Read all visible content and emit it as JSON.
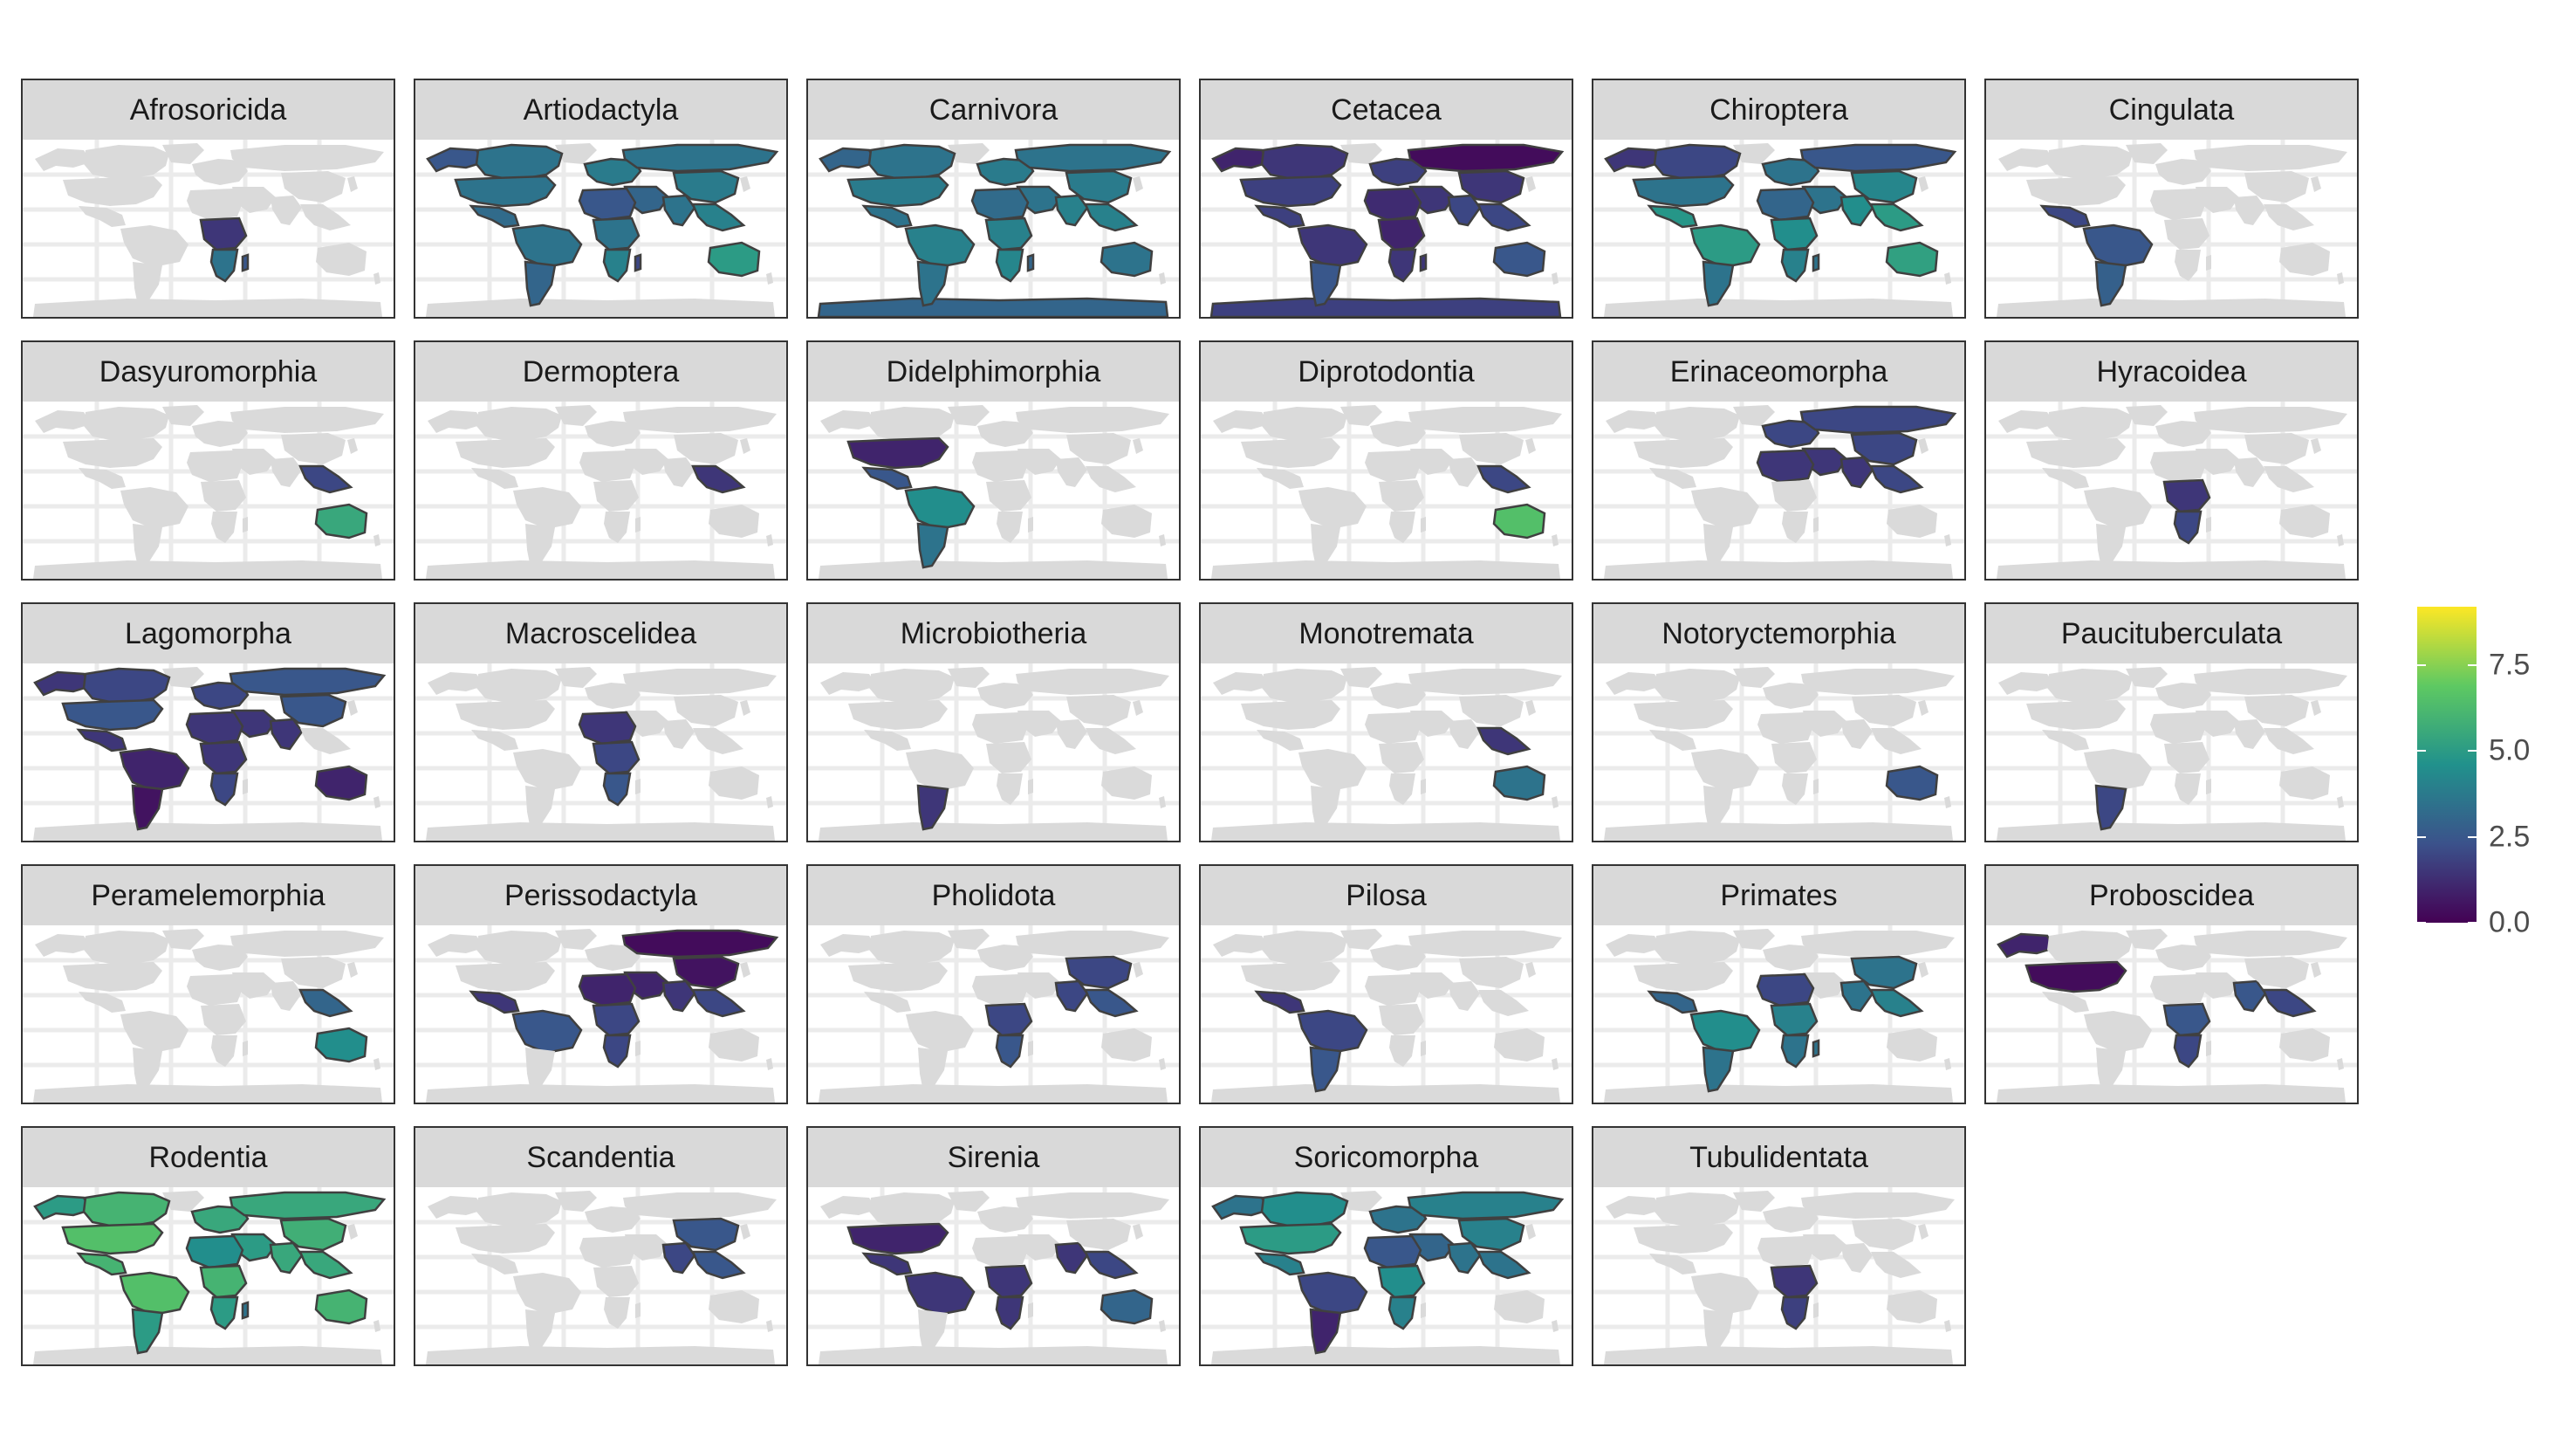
{
  "facets": [
    {
      "order": "Afrosoricida",
      "regions": {
        "c_africa": 1.5,
        "madagascar": 2.5,
        "s_africa": 3.5
      }
    },
    {
      "order": "Artiodactyla",
      "regions": {
        "canada": 3.5,
        "alaska": 2.5,
        "usa": 3.5,
        "mexico": 3.2,
        "n_south_america": 3.5,
        "s_south_america": 3.0,
        "europe": 3.8,
        "russia": 3.5,
        "middle_east": 3.0,
        "n_africa": 2.5,
        "c_africa": 3.5,
        "s_africa": 4.0,
        "india": 3.5,
        "china": 3.8,
        "se_asia": 4.0,
        "australia": 5.0,
        "madagascar": 2.0,
        "antarctica": null
      }
    },
    {
      "order": "Carnivora",
      "regions": {
        "canada": 3.5,
        "alaska": 3.0,
        "usa": 3.8,
        "mexico": 3.5,
        "n_south_america": 4.0,
        "s_south_america": 3.5,
        "europe": 3.8,
        "russia": 3.5,
        "middle_east": 3.5,
        "n_africa": 3.2,
        "c_africa": 4.0,
        "s_africa": 4.2,
        "india": 4.0,
        "china": 3.8,
        "se_asia": 4.0,
        "australia": 3.5,
        "madagascar": 3.0,
        "antarctica": 3.0
      }
    },
    {
      "order": "Cetacea",
      "regions": {
        "canada": 1.5,
        "alaska": 1.0,
        "usa": 1.8,
        "mexico": 1.8,
        "n_south_america": 1.5,
        "s_south_america": 2.5,
        "europe": 1.8,
        "russia": 0.3,
        "middle_east": 1.5,
        "n_africa": 1.2,
        "c_africa": 1.0,
        "s_africa": 1.5,
        "india": 2.0,
        "china": 1.5,
        "se_asia": 2.0,
        "australia": 2.5,
        "madagascar": 1.5,
        "antarctica": 1.8
      }
    },
    {
      "order": "Chiroptera",
      "regions": {
        "canada": 2.0,
        "alaska": 1.5,
        "usa": 3.5,
        "mexico": 4.8,
        "n_south_america": 5.0,
        "s_south_america": 3.5,
        "europe": 3.5,
        "russia": 2.5,
        "middle_east": 3.5,
        "n_africa": 3.0,
        "c_africa": 4.5,
        "s_africa": 4.0,
        "india": 4.5,
        "china": 4.2,
        "se_asia": 5.0,
        "australia": 5.2,
        "madagascar": 3.5,
        "antarctica": null
      }
    },
    {
      "order": "Cingulata",
      "regions": {
        "mexico": 2.0,
        "n_south_america": 2.5,
        "s_south_america": 2.8
      }
    },
    {
      "order": "Dasyuromorphia",
      "regions": {
        "australia": 5.5,
        "se_asia": 2.0
      }
    },
    {
      "order": "Dermoptera",
      "regions": {
        "se_asia": 1.5
      }
    },
    {
      "order": "Didelphimorphia",
      "regions": {
        "usa": 1.0,
        "mexico": 2.5,
        "n_south_america": 4.5,
        "s_south_america": 3.5
      }
    },
    {
      "order": "Diprotodontia",
      "regions": {
        "australia": 6.5,
        "se_asia": 2.0
      }
    },
    {
      "order": "Erinaceomorpha",
      "regions": {
        "europe": 2.0,
        "russia": 2.0,
        "middle_east": 1.5,
        "n_africa": 1.5,
        "china": 2.0,
        "india": 1.5,
        "se_asia": 2.0
      }
    },
    {
      "order": "Hyracoidea",
      "regions": {
        "c_africa": 1.5,
        "s_africa": 2.0
      }
    },
    {
      "order": "Lagomorpha",
      "regions": {
        "canada": 2.0,
        "alaska": 1.5,
        "usa": 2.5,
        "mexico": 1.5,
        "n_south_america": 1.0,
        "s_south_america": 0.5,
        "europe": 2.0,
        "russia": 2.5,
        "middle_east": 1.5,
        "n_africa": 1.5,
        "c_africa": 1.5,
        "s_africa": 2.0,
        "china": 2.5,
        "india": 1.5,
        "australia": 1.0
      }
    },
    {
      "order": "Macroscelidea",
      "regions": {
        "n_africa": 1.5,
        "c_africa": 2.0,
        "s_africa": 2.5
      }
    },
    {
      "order": "Microbiotheria",
      "regions": {
        "s_south_america": 1.5
      }
    },
    {
      "order": "Monotremata",
      "regions": {
        "australia": 3.5,
        "se_asia": 1.5
      }
    },
    {
      "order": "Notoryctemorphia",
      "regions": {
        "australia": 2.5
      }
    },
    {
      "order": "Paucituberculata",
      "regions": {
        "s_south_america": 2.0
      }
    },
    {
      "order": "Peramelemorphia",
      "regions": {
        "australia": 4.5,
        "se_asia": 3.0
      }
    },
    {
      "order": "Perissodactyla",
      "regions": {
        "russia": 0.3,
        "china": 0.5,
        "middle_east": 1.0,
        "india": 1.5,
        "se_asia": 2.0,
        "n_africa": 1.0,
        "c_africa": 2.0,
        "s_africa": 2.0,
        "n_south_america": 2.5,
        "mexico": 1.5
      }
    },
    {
      "order": "Pholidota",
      "regions": {
        "c_africa": 2.0,
        "s_africa": 2.5,
        "india": 2.0,
        "china": 2.0,
        "se_asia": 2.5
      }
    },
    {
      "order": "Pilosa",
      "regions": {
        "mexico": 1.5,
        "n_south_america": 2.0,
        "s_south_america": 2.5
      }
    },
    {
      "order": "Primates",
      "regions": {
        "mexico": 3.0,
        "n_south_america": 4.5,
        "s_south_america": 3.5,
        "n_africa": 2.0,
        "c_africa": 4.0,
        "s_africa": 3.5,
        "madagascar": 3.5,
        "india": 3.5,
        "china": 3.5,
        "se_asia": 4.0
      }
    },
    {
      "order": "Proboscidea",
      "regions": {
        "usa": 0.3,
        "alaska": 1.0,
        "c_africa": 2.5,
        "s_africa": 2.0,
        "india": 2.5,
        "se_asia": 2.0
      }
    },
    {
      "order": "Rodentia",
      "regions": {
        "canada": 6.0,
        "alaska": 5.0,
        "usa": 6.5,
        "mexico": 6.0,
        "n_south_america": 6.5,
        "s_south_america": 5.0,
        "europe": 5.5,
        "russia": 5.5,
        "middle_east": 5.0,
        "n_africa": 4.5,
        "c_africa": 6.0,
        "s_africa": 5.0,
        "india": 5.5,
        "china": 5.8,
        "se_asia": 5.5,
        "australia": 6.0,
        "madagascar": 3.5,
        "antarctica": null
      }
    },
    {
      "order": "Scandentia",
      "regions": {
        "india": 2.0,
        "china": 2.5,
        "se_asia": 2.5
      }
    },
    {
      "order": "Sirenia",
      "regions": {
        "usa": 1.0,
        "mexico": 1.5,
        "n_south_america": 1.5,
        "c_africa": 1.5,
        "s_africa": 1.5,
        "india": 1.5,
        "se_asia": 2.0,
        "australia": 3.0
      }
    },
    {
      "order": "Soricomorpha",
      "regions": {
        "canada": 4.5,
        "alaska": 3.5,
        "usa": 5.0,
        "mexico": 4.0,
        "n_south_america": 2.0,
        "s_south_america": 1.0,
        "europe": 3.5,
        "russia": 4.0,
        "middle_east": 3.0,
        "n_africa": 2.5,
        "c_africa": 4.5,
        "s_africa": 4.0,
        "india": 3.5,
        "china": 4.0,
        "se_asia": 3.5
      }
    },
    {
      "order": "Tubulidentata",
      "regions": {
        "c_africa": 1.5,
        "s_africa": 1.8
      }
    }
  ],
  "legend": {
    "min": 0,
    "max": 9.2,
    "ticks": [
      {
        "value": 0.0,
        "label": "0.0"
      },
      {
        "value": 2.5,
        "label": "2.5"
      },
      {
        "value": 5.0,
        "label": "5.0"
      },
      {
        "value": 7.5,
        "label": "7.5"
      }
    ],
    "palette": [
      "#440154",
      "#3b528b",
      "#21918c",
      "#5ec962",
      "#fde725"
    ]
  },
  "colors": {
    "no_data_land": "#dadada",
    "graticule": "#ebebeb",
    "border_stroke": "#404040",
    "strip_fill": "#d9d9d9",
    "panel_frame": "#333333"
  }
}
